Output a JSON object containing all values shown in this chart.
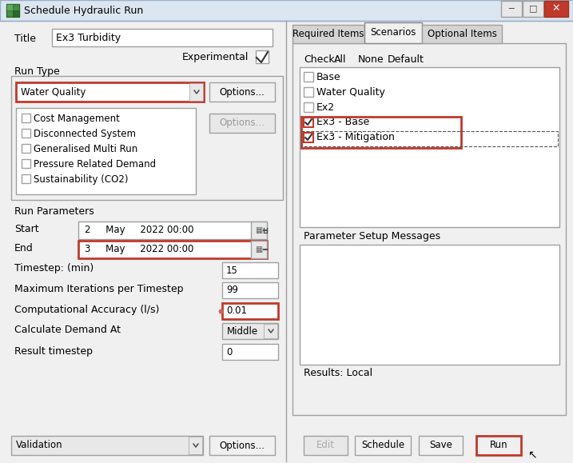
{
  "title_bar": "Schedule Hydraulic Run",
  "title_label": "Title",
  "title_value": "Ex3 Turbidity",
  "experimental_label": "Experimental",
  "run_type_label": "Run Type",
  "run_type_value": "Water Quality",
  "options_btn1": "Options...",
  "options_btn2": "Options...",
  "checkboxes_left": [
    "Cost Management",
    "Disconnected System",
    "Generalised Multi Run",
    "Pressure Related Demand",
    "Sustainability (CO2)"
  ],
  "run_parameters_label": "Run Parameters",
  "start_label": "Start",
  "start_value": "2     May     2022 00:00",
  "end_label": "End",
  "end_value": "3     May     2022 00:00",
  "timestep_label": "Timestep: (min)",
  "timestep_value": "15",
  "max_iter_label": "Maximum Iterations per Timestep",
  "max_iter_value": "99",
  "comp_acc_label": "Computational Accuracy (l/s)",
  "comp_acc_value": "0.01",
  "calc_demand_label": "Calculate Demand At",
  "calc_demand_value": "Middle",
  "result_ts_label": "Result timestep",
  "result_ts_value": "0",
  "validation_value": "Validation",
  "options_btn3": "Options...",
  "tabs": [
    "Required Items",
    "Scenarios",
    "Optional Items"
  ],
  "active_tab": "Scenarios",
  "check_label": "Check:",
  "check_options": [
    "All",
    "None",
    "Default"
  ],
  "scenarios": [
    "Base",
    "Water Quality",
    "Ex2",
    "Ex3 - Base",
    "Ex3 - Mitigation"
  ],
  "checked_scenarios": [
    3,
    4
  ],
  "results_label": "Results: Local",
  "param_setup_label": "Parameter Setup Messages",
  "bottom_buttons": [
    "Edit",
    "Schedule",
    "Save",
    "Run"
  ],
  "bg_color": "#f0f0f0",
  "highlight_red": "#c0392b",
  "white": "#ffffff",
  "border_color": "#a0a0a0",
  "text_color": "#000000",
  "titlebar_grad_top": "#adc6e0",
  "titlebar_grad_bot": "#c8daea"
}
